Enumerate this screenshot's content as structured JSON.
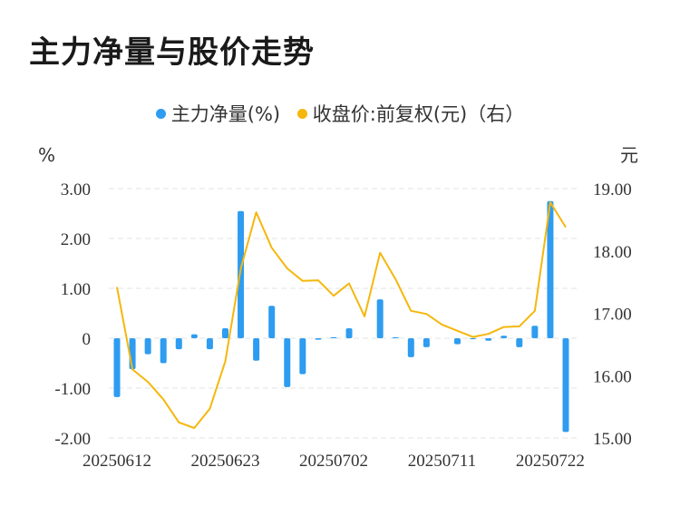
{
  "title": "主力净量与股价走势",
  "colors": {
    "bar": "#2e9cf0",
    "line": "#f5b70c",
    "grid": "#e3e3e3"
  },
  "chart_data": {
    "type": "bar",
    "legend": [
      {
        "label": "主力净量(%)",
        "color": "#2e9cf0",
        "shape": "dot"
      },
      {
        "label": "收盘价:前复权(元)（右）",
        "color": "#f5b70c",
        "shape": "dot"
      }
    ],
    "legend_position": "top-center",
    "grid": "horizontal-dashed",
    "y_left": {
      "unit": "%",
      "ylim": [
        -2,
        3
      ],
      "ticks": [
        "3.00",
        "2.00",
        "1.00",
        "0",
        "-1.00",
        "-2.00"
      ],
      "tick_values": [
        3,
        2,
        1,
        0,
        -1,
        -2
      ]
    },
    "y_right": {
      "unit": "元",
      "ylim": [
        15,
        19
      ],
      "ticks": [
        "19.00",
        "18.00",
        "17.00",
        "16.00",
        "15.00"
      ],
      "tick_values": [
        19,
        18,
        17,
        16,
        15
      ]
    },
    "x_tick_labels": [
      {
        "label": "20250612",
        "index": 0
      },
      {
        "label": "20250623",
        "index": 7
      },
      {
        "label": "20250702",
        "index": 14
      },
      {
        "label": "20250711",
        "index": 21
      },
      {
        "label": "20250722",
        "index": 28
      }
    ],
    "categories": [
      "20250612",
      "20250613",
      "20250616",
      "20250617",
      "20250618",
      "20250619",
      "20250620",
      "20250623",
      "20250624",
      "20250625",
      "20250626",
      "20250627",
      "20250630",
      "20250701",
      "20250702",
      "20250703",
      "20250704",
      "20250707",
      "20250708",
      "20250709",
      "20250710",
      "20250711",
      "20250714",
      "20250715",
      "20250716",
      "20250717",
      "20250718",
      "20250721",
      "20250722",
      "20250723"
    ],
    "series": [
      {
        "name": "主力净量(%)",
        "type": "bar",
        "axis": "left",
        "values": [
          -1.18,
          -0.62,
          -0.32,
          -0.5,
          -0.22,
          0.08,
          -0.22,
          0.2,
          2.55,
          -0.45,
          0.65,
          -0.98,
          -0.72,
          -0.03,
          0.02,
          0.2,
          0.0,
          0.78,
          0.02,
          -0.38,
          -0.18,
          0.0,
          -0.12,
          -0.02,
          -0.05,
          0.05,
          -0.18,
          0.25,
          2.75,
          -1.88
        ]
      },
      {
        "name": "收盘价:前复权(元)（右）",
        "type": "line",
        "axis": "right",
        "values": [
          17.42,
          16.1,
          15.9,
          15.62,
          15.25,
          15.16,
          15.47,
          16.23,
          17.72,
          18.62,
          18.05,
          17.72,
          17.52,
          17.53,
          17.28,
          17.48,
          16.95,
          17.97,
          17.55,
          17.04,
          16.99,
          16.82,
          16.72,
          16.62,
          16.67,
          16.78,
          16.79,
          17.04,
          18.78,
          18.38
        ]
      }
    ]
  }
}
